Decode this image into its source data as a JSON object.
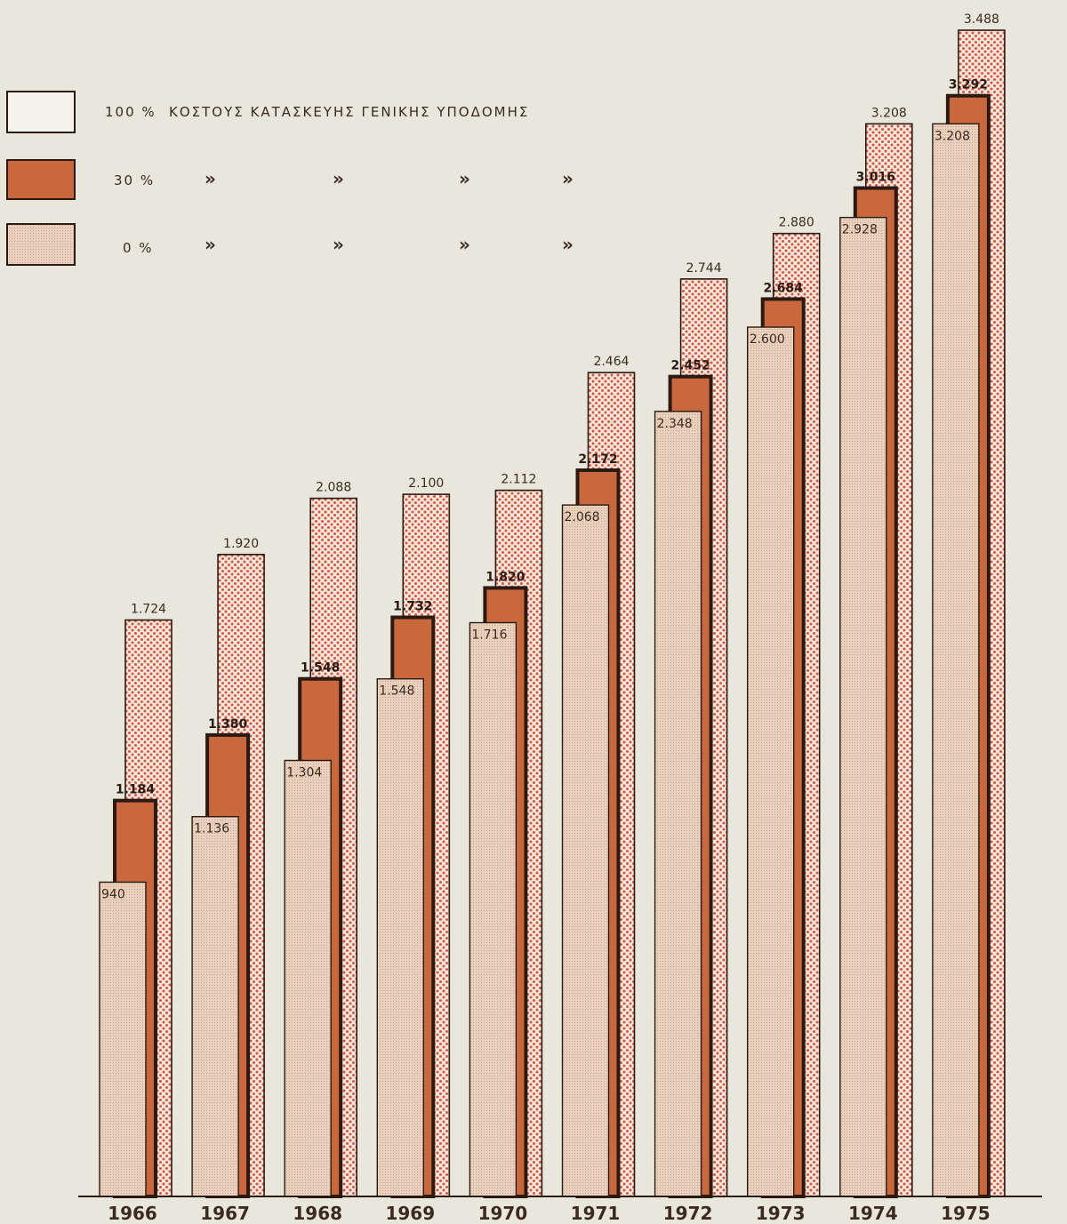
{
  "chart_data": {
    "type": "bar",
    "title": "",
    "xlabel": "",
    "ylabel": "",
    "categories": [
      "1966",
      "1967",
      "1968",
      "1969",
      "1970",
      "1971",
      "1972",
      "1973",
      "1974",
      "1975"
    ],
    "series": [
      {
        "name": "100 % ΚΟΣΤΟΥΣ ΚΑΤΑΣΚΕΥΗΣ ΓΕΝΙΚΗΣ ΥΠΟΔΟΜΗΣ",
        "values": [
          940,
          1136,
          1304,
          1548,
          1716,
          2068,
          2348,
          2600,
          2928,
          3208
        ],
        "labels": [
          "940",
          "1.136",
          "1.304",
          "1.548",
          "1.716",
          "2.068",
          "2.348",
          "2.600",
          "2.928",
          "3.208"
        ],
        "color": "#e7cbb4"
      },
      {
        "name": "30 %",
        "values": [
          1184,
          1380,
          1548,
          1732,
          1820,
          2172,
          2452,
          2684,
          3016,
          3292
        ],
        "labels": [
          "1.184",
          "1.380",
          "1.548",
          "1.732",
          "1.820",
          "2.172",
          "2.452",
          "2.684",
          "3.016",
          "3.292"
        ],
        "color": "#c8683c"
      },
      {
        "name": "0 %",
        "values": [
          1724,
          1920,
          2088,
          2100,
          2112,
          2464,
          2744,
          2880,
          3208,
          3488
        ],
        "labels": [
          "1.724",
          "1.920",
          "2.088",
          "2.100",
          "2.112",
          "2.464",
          "2.744",
          "2.880",
          "3.208",
          "3.488"
        ],
        "color": "#f0d5c8"
      }
    ],
    "ylim": [
      0,
      3488
    ],
    "grid": false,
    "legend_position": "top-left"
  },
  "legend": {
    "items": [
      {
        "percent": "100 %",
        "text": "ΚΟΣΤΟΥΣ ΚΑΤΑΣΚΕΥΗΣ ΓΕΝΙΚΗΣ ΥΠΟΔΟΜΗΣ"
      },
      {
        "percent": "30 %",
        "text": ""
      },
      {
        "percent": "0 %",
        "text": ""
      }
    ],
    "ditto_mark": "»"
  },
  "colors": {
    "background": "#e9e7db",
    "outline": "#2a1a12",
    "dots": "#d9553c"
  }
}
